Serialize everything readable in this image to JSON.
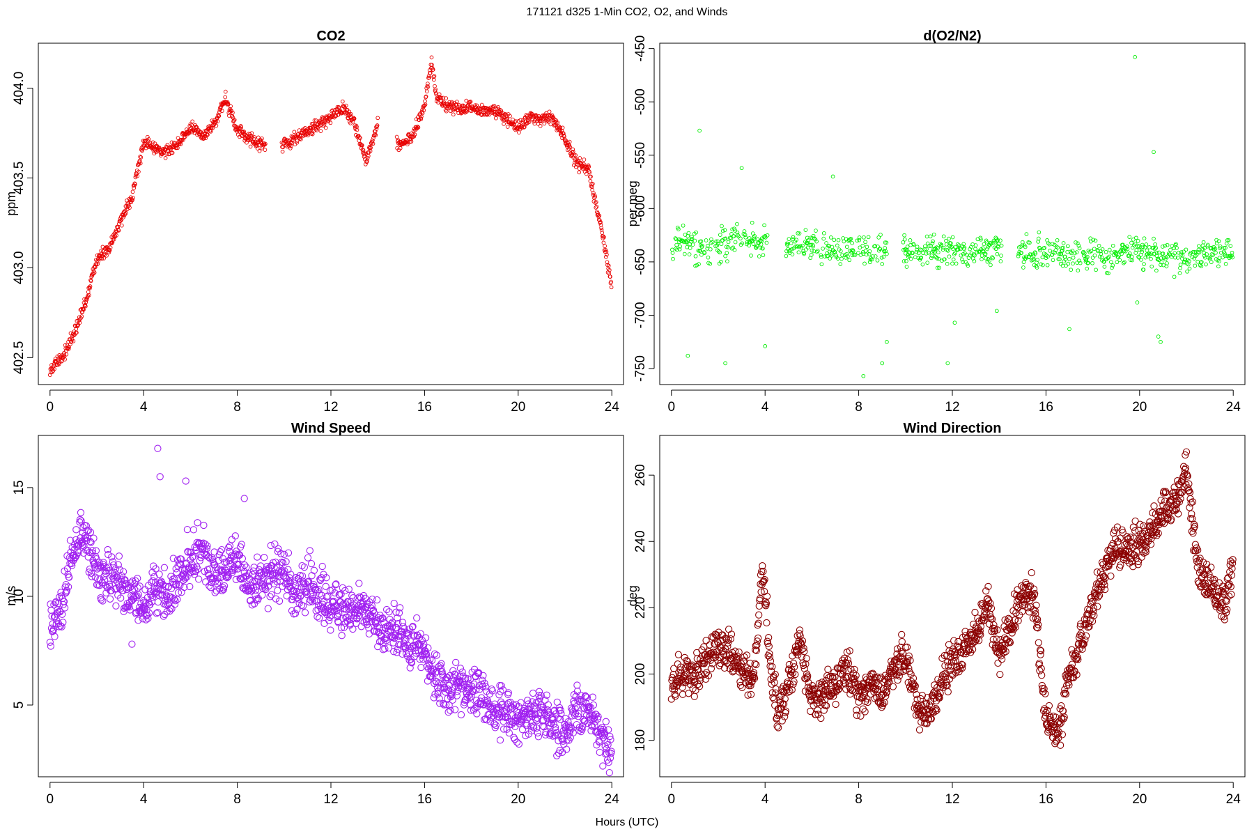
{
  "page_title": "171121   d325   1-Min CO2, O2, and Winds",
  "shared_xlabel": "Hours (UTC)",
  "chart_data": [
    {
      "id": "co2",
      "type": "scatter",
      "title": "CO2",
      "ylabel": "ppm",
      "xlabel": "",
      "xlim": [
        -0.5,
        24.5
      ],
      "ylim": [
        402.35,
        404.25
      ],
      "xticks": [
        0,
        4,
        8,
        12,
        16,
        20,
        24
      ],
      "xtick_labels": [
        "0",
        "4",
        "8",
        "12",
        "16",
        "20",
        "24"
      ],
      "yticks": [
        402.5,
        403.0,
        403.5,
        404.0
      ],
      "ytick_labels": [
        "402.5",
        "403.0",
        "403.5",
        "404.0"
      ],
      "color": "#e80000",
      "marker_size": "small",
      "grid": false,
      "series": [
        {
          "x": [
            0.0,
            0.5,
            1.0,
            1.5,
            2.0,
            2.5,
            3.0,
            3.5,
            4.0,
            4.5,
            5.0,
            5.5,
            6.0,
            6.5,
            7.0,
            7.5,
            8.0,
            8.5,
            9.0,
            10.0,
            10.5,
            11.0,
            11.5,
            12.0,
            12.5,
            13.0,
            13.5,
            14.0,
            15.0,
            15.5,
            16.0,
            16.3,
            16.5,
            17.0,
            17.5,
            18.0,
            18.5,
            19.0,
            20.0,
            20.5,
            21.0,
            21.5,
            22.0,
            22.5,
            23.0,
            23.5,
            24.0
          ],
          "y": [
            402.43,
            402.5,
            402.62,
            402.8,
            403.05,
            403.1,
            403.25,
            403.4,
            403.7,
            403.66,
            403.65,
            403.7,
            403.78,
            403.73,
            403.8,
            403.94,
            403.76,
            403.72,
            403.69,
            403.68,
            403.72,
            403.76,
            403.8,
            403.83,
            403.9,
            403.8,
            403.6,
            403.8,
            403.68,
            403.73,
            403.9,
            404.15,
            403.95,
            403.9,
            403.88,
            403.9,
            403.87,
            403.88,
            403.78,
            403.84,
            403.82,
            403.83,
            403.72,
            403.58,
            403.55,
            403.25,
            402.9
          ]
        }
      ]
    },
    {
      "id": "o2",
      "type": "scatter",
      "title": "d(O2/N2)",
      "ylabel": "per meg",
      "xlabel": "",
      "xlim": [
        -0.5,
        24.5
      ],
      "ylim": [
        -765,
        -445
      ],
      "xticks": [
        0,
        4,
        8,
        12,
        16,
        20,
        24
      ],
      "xtick_labels": [
        "0",
        "4",
        "8",
        "12",
        "16",
        "20",
        "24"
      ],
      "yticks": [
        -750,
        -700,
        -650,
        -600,
        -550,
        -500,
        -450
      ],
      "ytick_labels": [
        "-750",
        "-700",
        "-650",
        "-600",
        "-550",
        "-500",
        "-450"
      ],
      "color": "#00ee00",
      "marker_size": "small",
      "grid": false,
      "series": [
        {
          "x": [
            0.0,
            0.5,
            1.0,
            1.5,
            2.0,
            2.5,
            3.0,
            3.5,
            4.0,
            5.0,
            5.5,
            6.0,
            6.5,
            7.0,
            7.5,
            8.0,
            8.5,
            9.0,
            10.0,
            10.5,
            11.0,
            11.5,
            12.0,
            12.5,
            13.0,
            13.5,
            14.0,
            15.0,
            15.5,
            16.0,
            16.5,
            17.0,
            17.5,
            18.0,
            18.5,
            19.0,
            19.5,
            20.0,
            20.5,
            21.0,
            21.5,
            22.0,
            22.5,
            23.0,
            23.5,
            24.0
          ],
          "y": [
            -632,
            -628,
            -636,
            -640,
            -635,
            -628,
            -632,
            -630,
            -630,
            -636,
            -634,
            -633,
            -637,
            -641,
            -638,
            -640,
            -642,
            -638,
            -639,
            -637,
            -640,
            -641,
            -640,
            -639,
            -641,
            -640,
            -638,
            -640,
            -642,
            -641,
            -643,
            -643,
            -644,
            -642,
            -645,
            -646,
            -641,
            -640,
            -643,
            -645,
            -644,
            -647,
            -645,
            -642,
            -640,
            -641
          ],
          "outliers_x": [
            1.2,
            0.7,
            2.3,
            3.0,
            4.0,
            6.9,
            8.2,
            9.0,
            9.2,
            11.8,
            12.1,
            13.9,
            17.0,
            19.8,
            19.9,
            20.6,
            20.8,
            20.9
          ],
          "outliers_y": [
            -527,
            -738,
            -745,
            -562,
            -729,
            -570,
            -757,
            -745,
            -725,
            -745,
            -707,
            -696,
            -713,
            -458,
            -688,
            -547,
            -720,
            -725
          ]
        }
      ]
    },
    {
      "id": "wind_speed",
      "type": "scatter",
      "title": "Wind Speed",
      "ylabel": "m/s",
      "xlabel": "",
      "xlim": [
        -0.5,
        24.5
      ],
      "ylim": [
        1.7,
        17.4
      ],
      "xticks": [
        0,
        4,
        8,
        12,
        16,
        20,
        24
      ],
      "xtick_labels": [
        "0",
        "4",
        "8",
        "12",
        "16",
        "20",
        "24"
      ],
      "yticks": [
        5,
        10,
        15
      ],
      "ytick_labels": [
        "5",
        "10",
        "15"
      ],
      "color": "#a020f0",
      "marker_size": "large",
      "grid": false,
      "series": [
        {
          "x": [
            0.0,
            0.5,
            1.0,
            1.5,
            2.0,
            2.5,
            3.0,
            3.5,
            4.0,
            4.5,
            5.0,
            5.5,
            6.0,
            6.5,
            7.0,
            7.5,
            8.0,
            8.5,
            9.0,
            9.5,
            10.0,
            10.5,
            11.0,
            11.5,
            12.0,
            12.5,
            13.0,
            13.5,
            14.0,
            14.5,
            15.0,
            15.5,
            16.0,
            16.5,
            17.0,
            17.5,
            18.0,
            18.5,
            19.0,
            19.5,
            20.0,
            20.5,
            21.0,
            21.5,
            22.0,
            22.5,
            23.0,
            23.5,
            24.0
          ],
          "y": [
            8.6,
            9.5,
            12.0,
            12.8,
            11.0,
            10.8,
            10.6,
            9.8,
            9.5,
            10.5,
            9.8,
            11.2,
            11.8,
            12.3,
            11.0,
            11.3,
            11.6,
            10.5,
            10.6,
            10.9,
            11.2,
            10.3,
            10.8,
            10.2,
            9.5,
            9.3,
            9.5,
            9.2,
            8.6,
            8.4,
            8.1,
            7.8,
            7.3,
            6.3,
            5.8,
            5.6,
            5.7,
            5.5,
            4.9,
            4.7,
            4.6,
            4.4,
            4.6,
            4.0,
            3.7,
            4.8,
            4.6,
            3.8,
            2.8
          ],
          "outliers_x": [
            4.6,
            4.7,
            5.8,
            8.3,
            3.5
          ],
          "outliers_y": [
            16.8,
            15.5,
            15.3,
            14.5,
            7.8
          ]
        }
      ]
    },
    {
      "id": "wind_direction",
      "type": "scatter",
      "title": "Wind Direction",
      "ylabel": "deg",
      "xlabel": "",
      "xlim": [
        -0.5,
        24.5
      ],
      "ylim": [
        169,
        272
      ],
      "xticks": [
        0,
        4,
        8,
        12,
        16,
        20,
        24
      ],
      "xtick_labels": [
        "0",
        "4",
        "8",
        "12",
        "16",
        "20",
        "24"
      ],
      "yticks": [
        180,
        200,
        220,
        240,
        260
      ],
      "ytick_labels": [
        "180",
        "200",
        "220",
        "240",
        "260"
      ],
      "color": "#8b0000",
      "marker_size": "large",
      "grid": false,
      "series": [
        {
          "x": [
            0.0,
            0.5,
            1.0,
            1.5,
            2.0,
            2.5,
            3.0,
            3.5,
            3.9,
            4.2,
            4.5,
            5.0,
            5.5,
            6.0,
            6.5,
            7.0,
            7.5,
            8.0,
            8.5,
            9.0,
            9.5,
            10.0,
            10.5,
            11.0,
            11.5,
            12.0,
            12.5,
            13.0,
            13.5,
            14.0,
            14.5,
            15.0,
            15.5,
            16.0,
            16.5,
            17.0,
            17.5,
            18.0,
            18.5,
            19.0,
            19.5,
            20.0,
            20.5,
            21.0,
            21.5,
            22.0,
            22.5,
            23.0,
            23.5,
            24.0
          ],
          "y": [
            196,
            200,
            198,
            206,
            209,
            206,
            202,
            198,
            232,
            205,
            188,
            195,
            210,
            192,
            194,
            198,
            202,
            192,
            197,
            194,
            203,
            205,
            190,
            188,
            196,
            204,
            207,
            212,
            222,
            205,
            215,
            225,
            224,
            186,
            180,
            200,
            210,
            220,
            232,
            238,
            238,
            240,
            242,
            249,
            252,
            262,
            232,
            228,
            220,
            232
          ]
        }
      ]
    }
  ]
}
